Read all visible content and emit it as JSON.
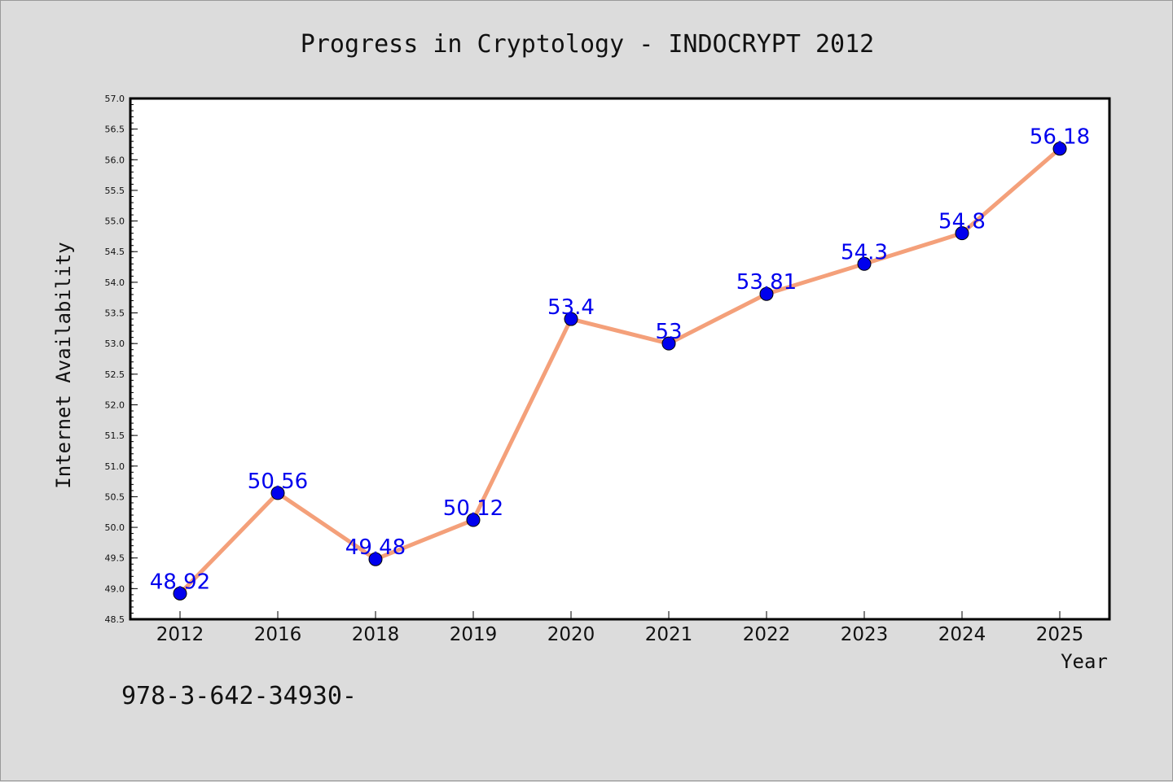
{
  "chart_data": {
    "type": "line",
    "title": "Progress in Cryptology - INDOCRYPT 2012",
    "xlabel": "Year",
    "ylabel": "Internet Availability",
    "categories": [
      "2012",
      "2016",
      "2018",
      "2019",
      "2020",
      "2021",
      "2022",
      "2023",
      "2024",
      "2025"
    ],
    "series": [
      {
        "values": [
          48.92,
          50.56,
          49.48,
          50.12,
          53.4,
          53,
          53.81,
          54.3,
          54.8,
          56.18
        ],
        "labels": [
          "48.92",
          "50.56",
          "49.48",
          "50.12",
          "53.4",
          "53",
          "53.81",
          "54.3",
          "54.8",
          "56.18"
        ],
        "line_color": "#f4a07a",
        "marker_color": "#0000ee"
      }
    ],
    "ylim": [
      48.5,
      57.0
    ],
    "yticks": [
      "48.5",
      "49.0",
      "49.5",
      "50.0",
      "50.5",
      "51.0",
      "51.5",
      "52.0",
      "52.5",
      "53.0",
      "53.5",
      "54.0",
      "54.5",
      "55.0",
      "55.5",
      "56.0",
      "56.5",
      "57.0"
    ],
    "grid": false,
    "legend": "none"
  },
  "footer_text": "978-3-642-34930-",
  "colors": {
    "background": "#dcdcdc",
    "plot_background": "#ffffff",
    "line": "#f4a07a",
    "marker": "#0000ee",
    "data_label": "#0000ee"
  }
}
